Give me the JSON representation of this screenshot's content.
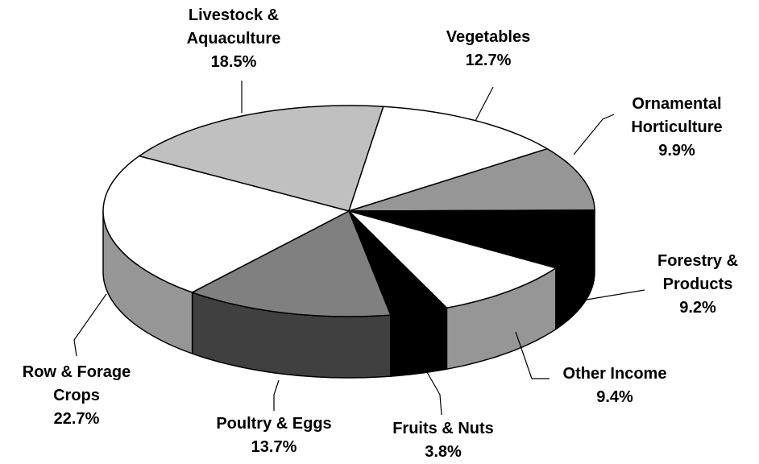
{
  "chart_data": {
    "type": "pie3d",
    "categories": [
      "Livestock & Aquaculture",
      "Vegetables",
      "Ornamental Horticulture",
      "Forestry & Products",
      "Other Income",
      "Fruits & Nuts",
      "Poultry & Eggs",
      "Row & Forage Crops"
    ],
    "values": [
      18.5,
      12.7,
      9.9,
      9.2,
      9.4,
      3.8,
      13.7,
      22.7
    ],
    "value_labels": [
      "18.5%",
      "12.7%",
      "9.9%",
      "9.2%",
      "9.4%",
      "3.8%",
      "13.7%",
      "22.7%"
    ],
    "colors": [
      "#c0c0c0",
      "#ffffff",
      "#969696",
      "#000000",
      "#ffffff",
      "#000000",
      "#808080",
      "#ffffff"
    ],
    "side_colors": [
      "#c0c0c0",
      "#ffffff",
      "#969696",
      "#000000",
      "#969696",
      "#000000",
      "#404040",
      "#969696"
    ]
  }
}
